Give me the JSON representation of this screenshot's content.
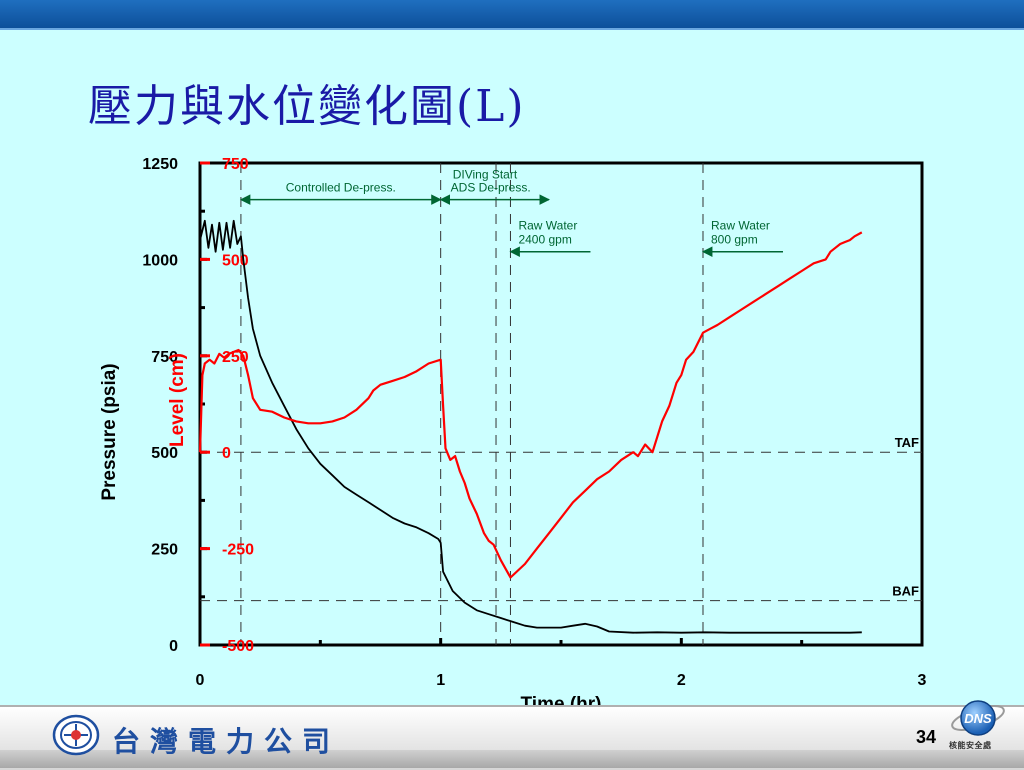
{
  "slide": {
    "title": "壓力與水位變化圖(L)",
    "page_number": "34",
    "company_name": "台灣電力公司",
    "dns_logo_text": "DNS",
    "dns_caption": "核能安全處"
  },
  "colors": {
    "background": "#ccffff",
    "pressure": "#000000",
    "level": "#ff0000",
    "annotation": "#006633"
  },
  "chart_data": {
    "type": "line",
    "xlabel": "Time (hr)",
    "ylabel_left": "Pressure (psia)",
    "ylabel_right": "Level (cm)",
    "xlim": [
      0,
      3
    ],
    "ylim_left": [
      0,
      1250
    ],
    "ylim_right": [
      -500,
      750
    ],
    "x_ticks": [
      "0",
      "1",
      "2",
      "3"
    ],
    "y_ticks_left": [
      "0",
      "250",
      "500",
      "750",
      "1000",
      "1250"
    ],
    "y_ticks_right": [
      "-500",
      "-250",
      "0",
      "250",
      "500",
      "750"
    ],
    "reference_lines": [
      {
        "label": "TAF",
        "level": 0
      },
      {
        "label": "BAF",
        "level": -385
      }
    ],
    "event_times": [
      0.17,
      1.0,
      1.23,
      1.29,
      2.09
    ],
    "annotations": [
      {
        "text": "Controlled De-press.",
        "from": 0.17,
        "to": 1.0,
        "pressure": 1155
      },
      {
        "text": "DIVing Start",
        "time": 1.05,
        "pressure": 1210
      },
      {
        "text": "ADS De-press.",
        "from": 1.0,
        "to": 1.45,
        "pressure": 1155
      },
      {
        "text": "Raw Water\n2400 gpm",
        "time": 1.29,
        "pressure": 1020
      },
      {
        "text": "Raw Water\n800 gpm",
        "time": 2.09,
        "pressure": 1020
      }
    ],
    "series": [
      {
        "name": "Pressure (psia)",
        "axis": "left",
        "x": [
          0,
          0.02,
          0.035,
          0.05,
          0.065,
          0.08,
          0.095,
          0.11,
          0.125,
          0.14,
          0.155,
          0.17,
          0.18,
          0.2,
          0.22,
          0.25,
          0.3,
          0.35,
          0.4,
          0.45,
          0.5,
          0.55,
          0.6,
          0.65,
          0.7,
          0.75,
          0.8,
          0.85,
          0.9,
          0.95,
          0.99,
          1.0,
          1.01,
          1.05,
          1.1,
          1.15,
          1.2,
          1.25,
          1.3,
          1.35,
          1.4,
          1.45,
          1.5,
          1.55,
          1.6,
          1.65,
          1.7,
          1.8,
          1.9,
          2.0,
          2.1,
          2.2,
          2.3,
          2.4,
          2.5,
          2.6,
          2.7,
          2.75
        ],
        "values": [
          1050,
          1100,
          1030,
          1090,
          1020,
          1095,
          1025,
          1095,
          1030,
          1100,
          1040,
          1060,
          1000,
          900,
          820,
          750,
          680,
          620,
          560,
          510,
          470,
          440,
          410,
          390,
          370,
          350,
          330,
          315,
          305,
          290,
          275,
          265,
          190,
          140,
          110,
          90,
          80,
          70,
          60,
          50,
          45,
          45,
          45,
          50,
          55,
          48,
          35,
          32,
          33,
          32,
          33,
          32,
          32,
          32,
          32,
          32,
          32,
          33
        ]
      },
      {
        "name": "Level (cm)",
        "axis": "right",
        "x": [
          0,
          0.01,
          0.02,
          0.04,
          0.06,
          0.08,
          0.1,
          0.12,
          0.14,
          0.16,
          0.18,
          0.2,
          0.22,
          0.25,
          0.3,
          0.35,
          0.4,
          0.45,
          0.5,
          0.55,
          0.6,
          0.65,
          0.7,
          0.72,
          0.75,
          0.8,
          0.85,
          0.9,
          0.95,
          1.0,
          1.01,
          1.02,
          1.04,
          1.06,
          1.08,
          1.1,
          1.12,
          1.15,
          1.18,
          1.2,
          1.22,
          1.25,
          1.29,
          1.35,
          1.4,
          1.45,
          1.5,
          1.55,
          1.6,
          1.65,
          1.7,
          1.75,
          1.8,
          1.82,
          1.85,
          1.88,
          1.9,
          1.92,
          1.95,
          1.98,
          2.0,
          2.02,
          2.05,
          2.09,
          2.12,
          2.15,
          2.2,
          2.25,
          2.3,
          2.35,
          2.4,
          2.45,
          2.5,
          2.55,
          2.6,
          2.62,
          2.64,
          2.66,
          2.68,
          2.7,
          2.72,
          2.75
        ],
        "values": [
          0,
          200,
          230,
          240,
          230,
          255,
          245,
          255,
          260,
          265,
          250,
          200,
          140,
          110,
          105,
          90,
          80,
          75,
          75,
          80,
          90,
          110,
          140,
          160,
          175,
          185,
          195,
          210,
          230,
          240,
          120,
          10,
          -20,
          -10,
          -50,
          -80,
          -120,
          -160,
          -210,
          -230,
          -240,
          -280,
          -325,
          -290,
          -250,
          -210,
          -170,
          -130,
          -100,
          -70,
          -50,
          -20,
          0,
          -10,
          20,
          0,
          40,
          80,
          120,
          180,
          200,
          240,
          260,
          310,
          320,
          330,
          350,
          370,
          390,
          410,
          430,
          450,
          470,
          490,
          500,
          520,
          530,
          540,
          545,
          550,
          560,
          570
        ]
      }
    ]
  }
}
